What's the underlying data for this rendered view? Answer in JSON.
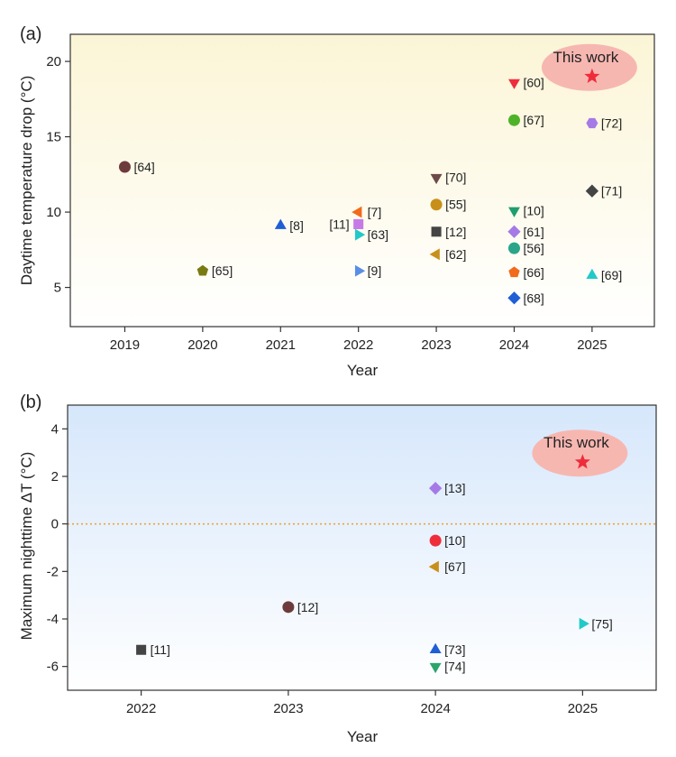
{
  "chart_data": [
    {
      "type": "scatter",
      "panel_label": "(a)",
      "xlabel": "Year",
      "ylabel": "Daytime temperature drop (°C)",
      "xlim": [
        2018.3,
        2025.8
      ],
      "ylim": [
        2.4,
        21.8
      ],
      "xticks": [
        2019,
        2020,
        2021,
        2022,
        2023,
        2024,
        2025
      ],
      "yticks": [
        5,
        10,
        15,
        20
      ],
      "background": "warm-gradient",
      "points": [
        {
          "x": 2019,
          "y": 13.0,
          "label": "[64]",
          "marker": "circle",
          "color": "#6d3b3b"
        },
        {
          "x": 2020,
          "y": 6.1,
          "label": "[65]",
          "marker": "pentagon",
          "color": "#7a7a12"
        },
        {
          "x": 2021,
          "y": 9.1,
          "label": "[8]",
          "marker": "triangle-up",
          "color": "#1f5fd6"
        },
        {
          "x": 2022,
          "y": 10.0,
          "label": "[7]",
          "marker": "triangle-left",
          "color": "#f26a1b"
        },
        {
          "x": 2022,
          "y": 9.2,
          "label": "[11]",
          "marker": "square",
          "color": "#c77ae6",
          "label_side": "left"
        },
        {
          "x": 2022,
          "y": 8.5,
          "label": "[63]",
          "marker": "triangle-right",
          "color": "#22c9c9"
        },
        {
          "x": 2022,
          "y": 6.1,
          "label": "[9]",
          "marker": "triangle-right",
          "color": "#5a8ee6"
        },
        {
          "x": 2023,
          "y": 12.3,
          "label": "[70]",
          "marker": "triangle-down",
          "color": "#6d4a4a"
        },
        {
          "x": 2023,
          "y": 10.5,
          "label": "[55]",
          "marker": "circle",
          "color": "#c8901a"
        },
        {
          "x": 2023,
          "y": 8.7,
          "label": "[12]",
          "marker": "square",
          "color": "#444444"
        },
        {
          "x": 2023,
          "y": 7.2,
          "label": "[62]",
          "marker": "triangle-left",
          "color": "#c8901a"
        },
        {
          "x": 2024,
          "y": 18.6,
          "label": "[60]",
          "marker": "triangle-down",
          "color": "#ef2d3a"
        },
        {
          "x": 2024,
          "y": 16.1,
          "label": "[67]",
          "marker": "circle",
          "color": "#4fb32a"
        },
        {
          "x": 2024,
          "y": 10.1,
          "label": "[10]",
          "marker": "triangle-down",
          "color": "#1f9e6e"
        },
        {
          "x": 2024,
          "y": 8.7,
          "label": "[61]",
          "marker": "diamond",
          "color": "#a57ae6"
        },
        {
          "x": 2024,
          "y": 7.6,
          "label": "[56]",
          "marker": "circle",
          "color": "#2aa58a"
        },
        {
          "x": 2024,
          "y": 6.0,
          "label": "[66]",
          "marker": "pentagon",
          "color": "#f26a1b"
        },
        {
          "x": 2024,
          "y": 4.3,
          "label": "[68]",
          "marker": "diamond",
          "color": "#1f5fd6"
        },
        {
          "x": 2025,
          "y": 15.9,
          "label": "[72]",
          "marker": "hexagon",
          "color": "#a57ae6"
        },
        {
          "x": 2025,
          "y": 11.4,
          "label": "[71]",
          "marker": "diamond",
          "color": "#444444"
        },
        {
          "x": 2025,
          "y": 5.8,
          "label": "[69]",
          "marker": "triangle-up",
          "color": "#22c9c9"
        }
      ],
      "highlight": {
        "x": 2025,
        "y": 19.0,
        "label": "This work",
        "marker": "star",
        "color": "#ef2d3a",
        "bubble_color": "#f7b7b1"
      }
    },
    {
      "type": "scatter",
      "panel_label": "(b)",
      "xlabel": "Year",
      "ylabel": "Maximum nighttime ΔT (°C)",
      "xlim": [
        2021.5,
        2025.5
      ],
      "ylim": [
        -7,
        5
      ],
      "xticks": [
        2022,
        2023,
        2024,
        2025
      ],
      "yticks": [
        -6,
        -4,
        -2,
        0,
        2,
        4
      ],
      "zero_line": {
        "y": 0,
        "style": "dotted",
        "color": "#e8a838"
      },
      "background": "cool-gradient",
      "points": [
        {
          "x": 2022,
          "y": -5.3,
          "label": "[11]",
          "marker": "square",
          "color": "#444444"
        },
        {
          "x": 2023,
          "y": -3.5,
          "label": "[12]",
          "marker": "circle",
          "color": "#6d3b3b"
        },
        {
          "x": 2024,
          "y": 1.5,
          "label": "[13]",
          "marker": "diamond",
          "color": "#a57ae6"
        },
        {
          "x": 2024,
          "y": -0.7,
          "label": "[10]",
          "marker": "circle",
          "color": "#ef2d3a"
        },
        {
          "x": 2024,
          "y": -1.8,
          "label": "[67]",
          "marker": "triangle-left",
          "color": "#c8901a"
        },
        {
          "x": 2024,
          "y": -5.3,
          "label": "[73]",
          "marker": "triangle-up",
          "color": "#1f5fd6"
        },
        {
          "x": 2024,
          "y": -6.0,
          "label": "[74]",
          "marker": "triangle-down",
          "color": "#2aa56a"
        },
        {
          "x": 2025,
          "y": -4.2,
          "label": "[75]",
          "marker": "triangle-right",
          "color": "#22c9c9"
        }
      ],
      "highlight": {
        "x": 2025,
        "y": 2.6,
        "label": "This work",
        "marker": "star",
        "color": "#ef2d3a",
        "bubble_color": "#f7b7b1"
      }
    }
  ]
}
